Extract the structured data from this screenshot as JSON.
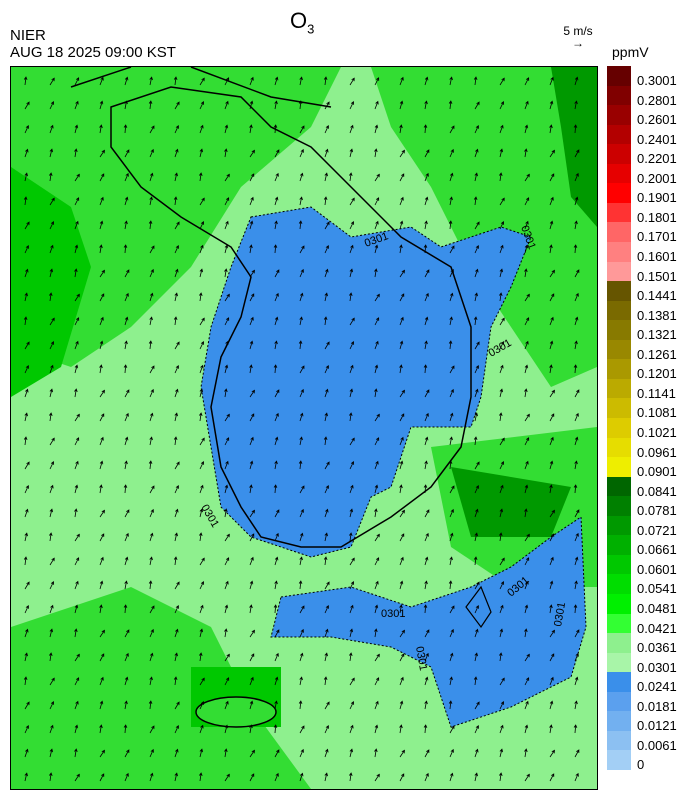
{
  "header": {
    "agency": "NIER",
    "timestamp": "AUG 18 2025 09:00 KST",
    "title_main": "O",
    "title_sub": "3",
    "wind_reference": "5 m/s",
    "unit": "ppmV"
  },
  "map": {
    "contour_label": "0301",
    "colors": {
      "sea_green": "#8ef08e",
      "mid_green": "#33dd33",
      "bright_green": "#00c800",
      "dark_green": "#009900",
      "blue_fill": "#3a8fea"
    }
  },
  "legend": {
    "labels": [
      "0.3001",
      "0.2801",
      "0.2601",
      "0.2401",
      "0.2201",
      "0.2001",
      "0.1901",
      "0.1801",
      "0.1701",
      "0.1601",
      "0.1501",
      "0.1441",
      "0.1381",
      "0.1321",
      "0.1261",
      "0.1201",
      "0.1141",
      "0.1081",
      "0.1021",
      "0.0961",
      "0.0901",
      "0.0841",
      "0.0781",
      "0.0721",
      "0.0661",
      "0.0601",
      "0.0541",
      "0.0481",
      "0.0421",
      "0.0361",
      "0.0301",
      "0.0241",
      "0.0181",
      "0.0121",
      "0.0061",
      "0"
    ],
    "colors": [
      "#660000",
      "#800000",
      "#990000",
      "#b30000",
      "#cc0000",
      "#e60000",
      "#ff0000",
      "#ff3333",
      "#ff6666",
      "#ff8080",
      "#ff9999",
      "#665500",
      "#7a6a00",
      "#887a00",
      "#998800",
      "#aa9900",
      "#bbaa00",
      "#ccbb00",
      "#ddcc00",
      "#e6dd00",
      "#eeee00",
      "#006600",
      "#008000",
      "#009900",
      "#00b000",
      "#00c800",
      "#00dd00",
      "#00f000",
      "#33ff33",
      "#8ef08e",
      "#a8f5a8",
      "#3a8fea",
      "#5ba0ee",
      "#72b0f0",
      "#8cc0f2",
      "#a3cff5"
    ]
  }
}
